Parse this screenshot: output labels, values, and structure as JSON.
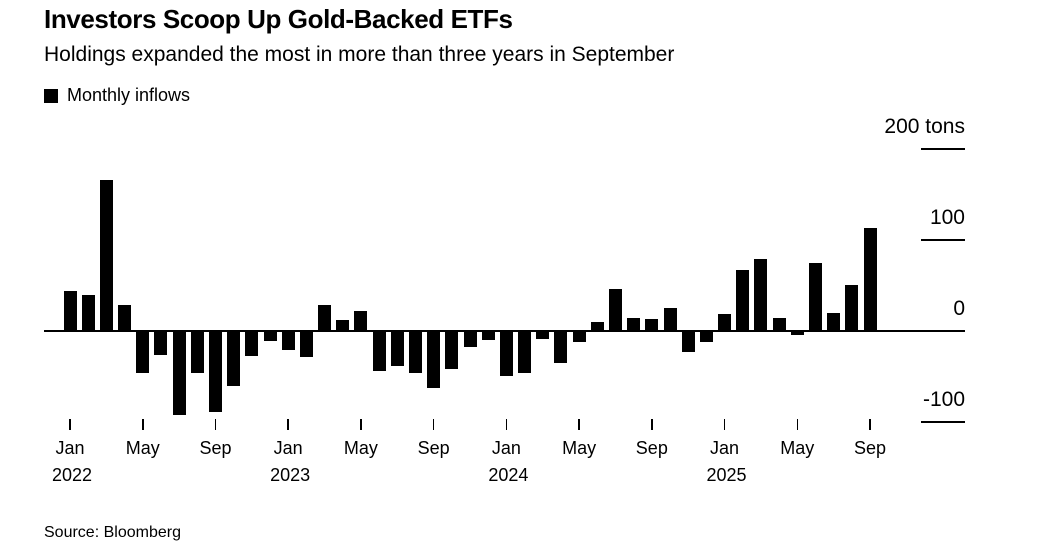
{
  "header": {
    "title": "Investors Scoop Up Gold-Backed ETFs",
    "subtitle": "Holdings expanded the most in more than three years in September",
    "legend_label": "Monthly inflows"
  },
  "source_note": "Source: Bloomberg",
  "colors": {
    "bar": "#000000",
    "axis": "#000000",
    "text": "#000000",
    "background": "#ffffff"
  },
  "chart_data": {
    "type": "bar",
    "title": "Investors Scoop Up Gold-Backed ETFs",
    "subtitle": "Holdings expanded the most in more than three years in September",
    "unit": "tons",
    "legend": [
      "Monthly inflows"
    ],
    "legend_position": "top-left",
    "grid": false,
    "ylim": [
      -130,
      230
    ],
    "y_ticks": [
      {
        "label": "200 tons",
        "value": 200
      },
      {
        "label": "100",
        "value": 100
      },
      {
        "label": "0",
        "value": 0
      },
      {
        "label": "-100",
        "value": -100
      }
    ],
    "x_tick_months": [
      "Jan",
      "May",
      "Sep"
    ],
    "months": [
      {
        "m": "Jan",
        "year": "2022",
        "tick": true,
        "value": 43
      },
      {
        "m": "Feb",
        "value": 38
      },
      {
        "m": "Mar",
        "value": 165
      },
      {
        "m": "Apr",
        "value": 28
      },
      {
        "m": "May",
        "tick": true,
        "value": -45
      },
      {
        "m": "Jun",
        "value": -26
      },
      {
        "m": "Jul",
        "value": -92
      },
      {
        "m": "Aug",
        "value": -46
      },
      {
        "m": "Sep",
        "tick": true,
        "value": -88
      },
      {
        "m": "Oct",
        "value": -60
      },
      {
        "m": "Nov",
        "value": -27
      },
      {
        "m": "Dec",
        "value": -10
      },
      {
        "m": "Jan",
        "year": "2023",
        "tick": true,
        "value": -20
      },
      {
        "m": "Feb",
        "value": -28
      },
      {
        "m": "Mar",
        "value": 27
      },
      {
        "m": "Apr",
        "value": 11
      },
      {
        "m": "May",
        "tick": true,
        "value": 21
      },
      {
        "m": "Jun",
        "value": -43
      },
      {
        "m": "Jul",
        "value": -38
      },
      {
        "m": "Aug",
        "value": -45
      },
      {
        "m": "Sep",
        "tick": true,
        "value": -62
      },
      {
        "m": "Oct",
        "value": -41
      },
      {
        "m": "Nov",
        "value": -17
      },
      {
        "m": "Dec",
        "value": -9
      },
      {
        "m": "Jan",
        "year": "2024",
        "tick": true,
        "value": -49
      },
      {
        "m": "Feb",
        "value": -46
      },
      {
        "m": "Mar",
        "value": -8
      },
      {
        "m": "Apr",
        "value": -35
      },
      {
        "m": "May",
        "tick": true,
        "value": -12
      },
      {
        "m": "Jun",
        "value": 9
      },
      {
        "m": "Jul",
        "value": 45
      },
      {
        "m": "Aug",
        "value": 13
      },
      {
        "m": "Sep",
        "tick": true,
        "value": 12
      },
      {
        "m": "Oct",
        "value": 24
      },
      {
        "m": "Nov",
        "value": -23
      },
      {
        "m": "Dec",
        "value": -11
      },
      {
        "m": "Jan",
        "year": "2025",
        "tick": true,
        "value": 18
      },
      {
        "m": "Feb",
        "value": 66
      },
      {
        "m": "Mar",
        "value": 78
      },
      {
        "m": "Apr",
        "value": 13
      },
      {
        "m": "May",
        "tick": true,
        "value": -4
      },
      {
        "m": "Jun",
        "value": 74
      },
      {
        "m": "Jul",
        "value": 19
      },
      {
        "m": "Aug",
        "value": 49
      },
      {
        "m": "Sep",
        "tick": true,
        "value": 112
      }
    ]
  }
}
